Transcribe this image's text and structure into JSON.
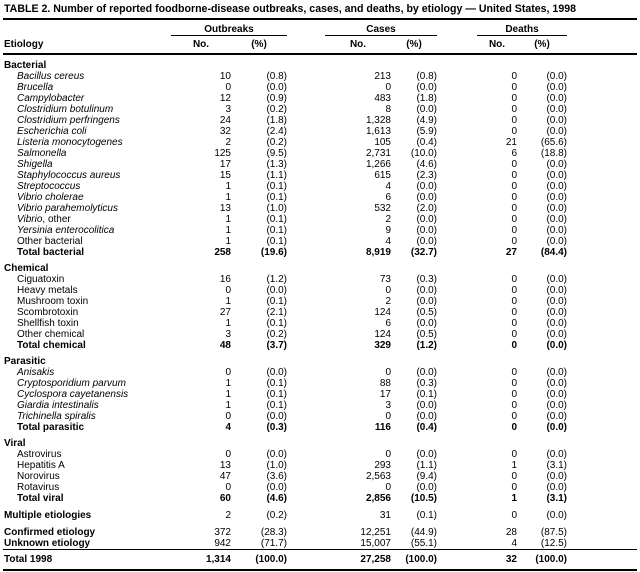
{
  "title": "TABLE 2. Number of reported foodborne-disease outbreaks, cases, and deaths, by etiology — United States, 1998",
  "columns": {
    "etiology": "Etiology",
    "outbreaks": "Outbreaks",
    "cases": "Cases",
    "deaths": "Deaths",
    "no": "No.",
    "pct": "(%)"
  },
  "sections": [
    {
      "header": "Bacterial",
      "rows": [
        {
          "label": "Bacillus cereus",
          "suffix": "",
          "style": "species",
          "values": [
            "10",
            "(0.8)",
            "213",
            "(0.8)",
            "0",
            "(0.0)"
          ]
        },
        {
          "label": "Brucella",
          "suffix": "",
          "style": "species",
          "values": [
            "0",
            "(0.0)",
            "0",
            "(0.0)",
            "0",
            "(0.0)"
          ]
        },
        {
          "label": "Campylobacter",
          "suffix": "",
          "style": "species",
          "values": [
            "12",
            "(0.9)",
            "483",
            "(1.8)",
            "0",
            "(0.0)"
          ]
        },
        {
          "label": "Clostridium botulinum",
          "suffix": "",
          "style": "species",
          "values": [
            "3",
            "(0.2)",
            "8",
            "(0.0)",
            "0",
            "(0.0)"
          ]
        },
        {
          "label": "Clostridium perfringens",
          "suffix": "",
          "style": "species",
          "values": [
            "24",
            "(1.8)",
            "1,328",
            "(4.9)",
            "0",
            "(0.0)"
          ]
        },
        {
          "label": "Escherichia coli",
          "suffix": "",
          "style": "species",
          "values": [
            "32",
            "(2.4)",
            "1,613",
            "(5.9)",
            "0",
            "(0.0)"
          ]
        },
        {
          "label": "Listeria monocytogenes",
          "suffix": "",
          "style": "species",
          "values": [
            "2",
            "(0.2)",
            "105",
            "(0.4)",
            "21",
            "(65.6)"
          ]
        },
        {
          "label": "Salmonella",
          "suffix": "",
          "style": "species",
          "values": [
            "125",
            "(9.5)",
            "2,731",
            "(10.0)",
            "6",
            "(18.8)"
          ]
        },
        {
          "label": "Shigella",
          "suffix": "",
          "style": "species",
          "values": [
            "17",
            "(1.3)",
            "1,266",
            "(4.6)",
            "0",
            "(0.0)"
          ]
        },
        {
          "label": "Staphylococcus aureus",
          "suffix": "",
          "style": "species",
          "values": [
            "15",
            "(1.1)",
            "615",
            "(2.3)",
            "0",
            "(0.0)"
          ]
        },
        {
          "label": "Streptococcus",
          "suffix": "",
          "style": "species",
          "values": [
            "1",
            "(0.1)",
            "4",
            "(0.0)",
            "0",
            "(0.0)"
          ]
        },
        {
          "label": "Vibrio cholerae",
          "suffix": "",
          "style": "species",
          "values": [
            "1",
            "(0.1)",
            "6",
            "(0.0)",
            "0",
            "(0.0)"
          ]
        },
        {
          "label": "Vibrio parahemolyticus",
          "suffix": "",
          "style": "species",
          "values": [
            "13",
            "(1.0)",
            "532",
            "(2.0)",
            "0",
            "(0.0)"
          ]
        },
        {
          "label": "Vibrio",
          "suffix": ", other",
          "style": "species",
          "values": [
            "1",
            "(0.1)",
            "2",
            "(0.0)",
            "0",
            "(0.0)"
          ]
        },
        {
          "label": "Yersinia enterocolitica",
          "suffix": "",
          "style": "species",
          "values": [
            "1",
            "(0.1)",
            "9",
            "(0.0)",
            "0",
            "(0.0)"
          ]
        },
        {
          "label": "Other bacterial",
          "suffix": "",
          "style": "plain",
          "values": [
            "1",
            "(0.1)",
            "4",
            "(0.0)",
            "0",
            "(0.0)"
          ]
        },
        {
          "label": "Total bacterial",
          "suffix": "",
          "style": "total",
          "values": [
            "258",
            "(19.6)",
            "8,919",
            "(32.7)",
            "27",
            "(84.4)"
          ]
        }
      ]
    },
    {
      "header": "Chemical",
      "rows": [
        {
          "label": "Ciguatoxin",
          "suffix": "",
          "style": "plain",
          "values": [
            "16",
            "(1.2)",
            "73",
            "(0.3)",
            "0",
            "(0.0)"
          ]
        },
        {
          "label": "Heavy metals",
          "suffix": "",
          "style": "plain",
          "values": [
            "0",
            "(0.0)",
            "0",
            "(0.0)",
            "0",
            "(0.0)"
          ]
        },
        {
          "label": "Mushroom toxin",
          "suffix": "",
          "style": "plain",
          "values": [
            "1",
            "(0.1)",
            "2",
            "(0.0)",
            "0",
            "(0.0)"
          ]
        },
        {
          "label": "Scombrotoxin",
          "suffix": "",
          "style": "plain",
          "values": [
            "27",
            "(2.1)",
            "124",
            "(0.5)",
            "0",
            "(0.0)"
          ]
        },
        {
          "label": "Shellfish toxin",
          "suffix": "",
          "style": "plain",
          "values": [
            "1",
            "(0.1)",
            "6",
            "(0.0)",
            "0",
            "(0.0)"
          ]
        },
        {
          "label": "Other chemical",
          "suffix": "",
          "style": "plain",
          "values": [
            "3",
            "(0.2)",
            "124",
            "(0.5)",
            "0",
            "(0.0)"
          ]
        },
        {
          "label": "Total chemical",
          "suffix": "",
          "style": "total",
          "values": [
            "48",
            "(3.7)",
            "329",
            "(1.2)",
            "0",
            "(0.0)"
          ]
        }
      ]
    },
    {
      "header": "Parasitic",
      "rows": [
        {
          "label": "Anisakis",
          "suffix": "",
          "style": "species",
          "values": [
            "0",
            "(0.0)",
            "0",
            "(0.0)",
            "0",
            "(0.0)"
          ]
        },
        {
          "label": "Cryptosporidium parvum",
          "suffix": "",
          "style": "species",
          "values": [
            "1",
            "(0.1)",
            "88",
            "(0.3)",
            "0",
            "(0.0)"
          ]
        },
        {
          "label": "Cyclospora cayetanensis",
          "suffix": "",
          "style": "species",
          "values": [
            "1",
            "(0.1)",
            "17",
            "(0.1)",
            "0",
            "(0.0)"
          ]
        },
        {
          "label": "Giardia intestinalis",
          "suffix": "",
          "style": "species",
          "values": [
            "1",
            "(0.1)",
            "3",
            "(0.0)",
            "0",
            "(0.0)"
          ]
        },
        {
          "label": "Trichinella spiralis",
          "suffix": "",
          "style": "species",
          "values": [
            "0",
            "(0.0)",
            "0",
            "(0.0)",
            "0",
            "(0.0)"
          ]
        },
        {
          "label": "Total parasitic",
          "suffix": "",
          "style": "total",
          "values": [
            "4",
            "(0.3)",
            "116",
            "(0.4)",
            "0",
            "(0.0)"
          ]
        }
      ]
    },
    {
      "header": "Viral",
      "rows": [
        {
          "label": "Astrovirus",
          "suffix": "",
          "style": "plain",
          "values": [
            "0",
            "(0.0)",
            "0",
            "(0.0)",
            "0",
            "(0.0)"
          ]
        },
        {
          "label": "Hepatitis A",
          "suffix": "",
          "style": "plain",
          "values": [
            "13",
            "(1.0)",
            "293",
            "(1.1)",
            "1",
            "(3.1)"
          ]
        },
        {
          "label": "Norovirus",
          "suffix": "",
          "style": "plain",
          "values": [
            "47",
            "(3.6)",
            "2,563",
            "(9.4)",
            "0",
            "(0.0)"
          ]
        },
        {
          "label": "Rotavirus",
          "suffix": "",
          "style": "plain",
          "values": [
            "0",
            "(0.0)",
            "0",
            "(0.0)",
            "0",
            "(0.0)"
          ]
        },
        {
          "label": "Total viral",
          "suffix": "",
          "style": "total",
          "values": [
            "60",
            "(4.6)",
            "2,856",
            "(10.5)",
            "1",
            "(3.1)"
          ]
        }
      ]
    }
  ],
  "footer_rows": [
    {
      "label": "Multiple etiologies",
      "gap_top": true,
      "values": [
        "2",
        "(0.2)",
        "31",
        "(0.1)",
        "0",
        "(0.0)"
      ]
    },
    {
      "label": "Confirmed etiology",
      "gap_top": true,
      "values": [
        "372",
        "(28.3)",
        "12,251",
        "(44.9)",
        "28",
        "(87.5)"
      ]
    },
    {
      "label": "Unknown etiology",
      "gap_top": false,
      "values": [
        "942",
        "(71.7)",
        "15,007",
        "(55.1)",
        "4",
        "(12.5)"
      ]
    }
  ],
  "total_row": {
    "label": "Total 1998",
    "values": [
      "1,314",
      "(100.0)",
      "27,258",
      "(100.0)",
      "32",
      "(100.0)"
    ]
  }
}
